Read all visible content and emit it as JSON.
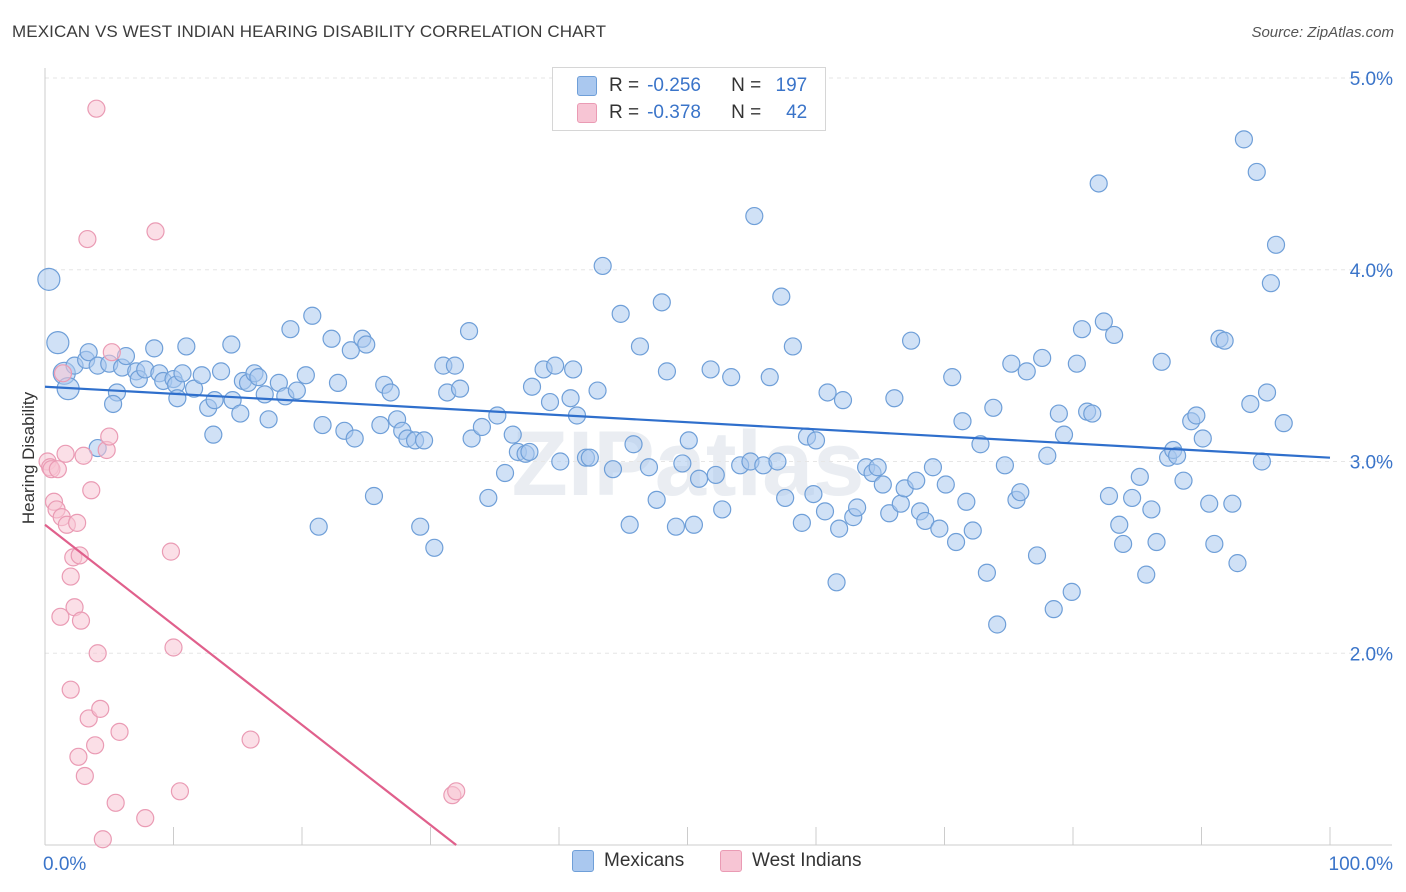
{
  "title": "MEXICAN VS WEST INDIAN HEARING DISABILITY CORRELATION CHART",
  "source": "Source: ZipAtlas.com",
  "watermark": "ZIPatlas",
  "colors": {
    "blue_fill": "#aac8ef",
    "blue_stroke": "#6f9fd8",
    "blue_line": "#2f6fcc",
    "pink_fill": "#f7c5d4",
    "pink_stroke": "#ea9bb4",
    "pink_line": "#e0608c",
    "tick_label": "#3a74c9",
    "grid": "#e6e6e6"
  },
  "legend_top": [
    {
      "r_label": "R =",
      "r_value": "-0.256",
      "n_label": "N =",
      "n_value": "197"
    },
    {
      "r_label": "R =",
      "r_value": "-0.378",
      "n_label": "N =",
      "n_value": "42"
    }
  ],
  "legend_bottom": [
    "Mexicans",
    "West Indians"
  ],
  "chart_data": {
    "type": "scatter",
    "title": "MEXICAN VS WEST INDIAN HEARING DISABILITY CORRELATION CHART",
    "xlabel": "",
    "ylabel": "Hearing Disability",
    "xlim": [
      0,
      100
    ],
    "ylim": [
      1.0,
      5.0
    ],
    "x_tick_labels": [
      "0.0%",
      "100.0%"
    ],
    "y_ticks": [
      2.0,
      3.0,
      4.0,
      5.0
    ],
    "y_tick_labels": [
      "2.0%",
      "3.0%",
      "4.0%",
      "5.0%"
    ],
    "grid": true,
    "legend_position": "top-center",
    "series": [
      {
        "name": "Mexicans",
        "r": -0.256,
        "n": 197,
        "trend": {
          "x": [
            0,
            100
          ],
          "y": [
            3.39,
            3.02
          ]
        },
        "points": [
          [
            0.3,
            3.95
          ],
          [
            1.0,
            3.62
          ],
          [
            1.5,
            3.46
          ],
          [
            1.8,
            3.38
          ],
          [
            2.3,
            3.5
          ],
          [
            3.2,
            3.53
          ],
          [
            3.4,
            3.57
          ],
          [
            4.1,
            3.07
          ],
          [
            4.1,
            3.5
          ],
          [
            5.0,
            3.51
          ],
          [
            5.6,
            3.36
          ],
          [
            5.3,
            3.3
          ],
          [
            6.0,
            3.49
          ],
          [
            6.3,
            3.55
          ],
          [
            7.1,
            3.47
          ],
          [
            7.3,
            3.43
          ],
          [
            7.8,
            3.48
          ],
          [
            8.5,
            3.59
          ],
          [
            8.9,
            3.46
          ],
          [
            9.2,
            3.42
          ],
          [
            10.0,
            3.43
          ],
          [
            10.2,
            3.4
          ],
          [
            10.3,
            3.33
          ],
          [
            10.7,
            3.46
          ],
          [
            11.0,
            3.6
          ],
          [
            11.6,
            3.38
          ],
          [
            12.2,
            3.45
          ],
          [
            12.7,
            3.28
          ],
          [
            13.1,
            3.14
          ],
          [
            13.2,
            3.32
          ],
          [
            13.7,
            3.47
          ],
          [
            14.6,
            3.32
          ],
          [
            14.5,
            3.61
          ],
          [
            15.2,
            3.25
          ],
          [
            15.4,
            3.42
          ],
          [
            15.8,
            3.41
          ],
          [
            16.3,
            3.46
          ],
          [
            16.6,
            3.44
          ],
          [
            17.1,
            3.35
          ],
          [
            17.4,
            3.22
          ],
          [
            18.2,
            3.41
          ],
          [
            18.7,
            3.34
          ],
          [
            19.1,
            3.69
          ],
          [
            19.6,
            3.37
          ],
          [
            20.3,
            3.45
          ],
          [
            20.8,
            3.76
          ],
          [
            21.3,
            2.66
          ],
          [
            21.6,
            3.19
          ],
          [
            22.3,
            3.64
          ],
          [
            22.8,
            3.41
          ],
          [
            23.3,
            3.16
          ],
          [
            23.8,
            3.58
          ],
          [
            24.1,
            3.12
          ],
          [
            24.7,
            3.64
          ],
          [
            25.0,
            3.61
          ],
          [
            25.6,
            2.82
          ],
          [
            26.1,
            3.19
          ],
          [
            26.4,
            3.4
          ],
          [
            26.9,
            3.36
          ],
          [
            27.4,
            3.22
          ],
          [
            27.8,
            3.16
          ],
          [
            28.2,
            3.12
          ],
          [
            28.8,
            3.11
          ],
          [
            29.2,
            2.66
          ],
          [
            29.5,
            3.11
          ],
          [
            30.3,
            2.55
          ],
          [
            31.0,
            3.5
          ],
          [
            31.3,
            3.36
          ],
          [
            31.9,
            3.5
          ],
          [
            32.3,
            3.38
          ],
          [
            33.0,
            3.68
          ],
          [
            33.2,
            3.12
          ],
          [
            34.0,
            3.18
          ],
          [
            34.5,
            2.81
          ],
          [
            35.2,
            3.24
          ],
          [
            35.8,
            2.94
          ],
          [
            36.4,
            3.14
          ],
          [
            36.8,
            3.05
          ],
          [
            37.4,
            3.04
          ],
          [
            37.7,
            3.05
          ],
          [
            37.9,
            3.39
          ],
          [
            38.8,
            3.48
          ],
          [
            39.3,
            3.31
          ],
          [
            39.7,
            3.5
          ],
          [
            40.1,
            3.0
          ],
          [
            40.9,
            3.33
          ],
          [
            41.1,
            3.48
          ],
          [
            41.4,
            3.24
          ],
          [
            42.1,
            3.02
          ],
          [
            42.4,
            3.02
          ],
          [
            43.0,
            3.37
          ],
          [
            43.4,
            4.02
          ],
          [
            44.2,
            2.96
          ],
          [
            44.8,
            3.77
          ],
          [
            45.5,
            2.67
          ],
          [
            45.8,
            3.09
          ],
          [
            46.3,
            3.6
          ],
          [
            47.0,
            2.97
          ],
          [
            47.6,
            2.8
          ],
          [
            48.0,
            3.83
          ],
          [
            48.4,
            3.47
          ],
          [
            49.1,
            2.66
          ],
          [
            49.6,
            2.99
          ],
          [
            50.1,
            3.11
          ],
          [
            50.5,
            2.67
          ],
          [
            50.9,
            2.91
          ],
          [
            51.8,
            3.48
          ],
          [
            52.2,
            2.93
          ],
          [
            52.7,
            2.75
          ],
          [
            53.4,
            3.44
          ],
          [
            54.1,
            2.98
          ],
          [
            54.9,
            3.0
          ],
          [
            55.2,
            4.28
          ],
          [
            55.9,
            2.98
          ],
          [
            56.4,
            3.44
          ],
          [
            57.0,
            3.0
          ],
          [
            57.3,
            3.86
          ],
          [
            57.6,
            2.81
          ],
          [
            58.2,
            3.6
          ],
          [
            58.9,
            2.68
          ],
          [
            59.3,
            3.13
          ],
          [
            59.8,
            2.83
          ],
          [
            60.0,
            3.11
          ],
          [
            60.7,
            2.74
          ],
          [
            60.9,
            3.36
          ],
          [
            61.6,
            2.37
          ],
          [
            61.8,
            2.65
          ],
          [
            62.1,
            3.32
          ],
          [
            62.9,
            2.71
          ],
          [
            63.2,
            2.76
          ],
          [
            63.9,
            2.97
          ],
          [
            64.4,
            2.94
          ],
          [
            64.8,
            2.97
          ],
          [
            65.2,
            2.88
          ],
          [
            65.7,
            2.73
          ],
          [
            66.1,
            3.33
          ],
          [
            66.6,
            2.78
          ],
          [
            66.9,
            2.86
          ],
          [
            67.4,
            3.63
          ],
          [
            67.8,
            2.9
          ],
          [
            68.1,
            2.74
          ],
          [
            68.5,
            2.69
          ],
          [
            69.1,
            2.97
          ],
          [
            69.6,
            2.65
          ],
          [
            70.1,
            2.88
          ],
          [
            70.6,
            3.44
          ],
          [
            70.9,
            2.58
          ],
          [
            71.4,
            3.21
          ],
          [
            71.7,
            2.79
          ],
          [
            72.2,
            2.64
          ],
          [
            72.8,
            3.09
          ],
          [
            73.3,
            2.42
          ],
          [
            73.8,
            3.28
          ],
          [
            74.1,
            2.15
          ],
          [
            74.7,
            2.98
          ],
          [
            75.2,
            3.51
          ],
          [
            75.6,
            2.8
          ],
          [
            75.9,
            2.84
          ],
          [
            76.4,
            3.47
          ],
          [
            77.2,
            2.51
          ],
          [
            77.6,
            3.54
          ],
          [
            78.0,
            3.03
          ],
          [
            78.5,
            2.23
          ],
          [
            78.9,
            3.25
          ],
          [
            79.3,
            3.14
          ],
          [
            79.9,
            2.32
          ],
          [
            80.3,
            3.51
          ],
          [
            80.7,
            3.69
          ],
          [
            81.1,
            3.26
          ],
          [
            81.5,
            3.25
          ],
          [
            82.0,
            4.45
          ],
          [
            82.4,
            3.73
          ],
          [
            82.8,
            2.82
          ],
          [
            83.2,
            3.66
          ],
          [
            83.6,
            2.67
          ],
          [
            83.9,
            2.57
          ],
          [
            84.6,
            2.81
          ],
          [
            85.2,
            2.92
          ],
          [
            85.7,
            2.41
          ],
          [
            86.1,
            2.75
          ],
          [
            86.5,
            2.58
          ],
          [
            86.9,
            3.52
          ],
          [
            87.4,
            3.02
          ],
          [
            87.8,
            3.06
          ],
          [
            88.1,
            3.03
          ],
          [
            88.6,
            2.9
          ],
          [
            89.2,
            3.21
          ],
          [
            89.6,
            3.24
          ],
          [
            90.1,
            3.12
          ],
          [
            90.6,
            2.78
          ],
          [
            91.0,
            2.57
          ],
          [
            91.4,
            3.64
          ],
          [
            91.8,
            3.63
          ],
          [
            92.4,
            2.78
          ],
          [
            92.8,
            2.47
          ],
          [
            93.3,
            4.68
          ],
          [
            93.8,
            3.3
          ],
          [
            94.3,
            4.51
          ],
          [
            94.7,
            3.0
          ],
          [
            95.1,
            3.36
          ],
          [
            95.4,
            3.93
          ],
          [
            95.8,
            4.13
          ],
          [
            96.4,
            3.2
          ]
        ]
      },
      {
        "name": "West Indians",
        "r": -0.378,
        "n": 42,
        "trend": {
          "x": [
            0,
            32
          ],
          "y": [
            2.67,
            1.0
          ]
        },
        "points": [
          [
            0.2,
            3.0
          ],
          [
            0.4,
            2.97
          ],
          [
            0.5,
            2.96
          ],
          [
            0.7,
            2.79
          ],
          [
            0.9,
            2.75
          ],
          [
            1.0,
            2.96
          ],
          [
            1.2,
            2.19
          ],
          [
            1.3,
            2.71
          ],
          [
            1.4,
            3.46
          ],
          [
            1.6,
            3.04
          ],
          [
            1.7,
            2.67
          ],
          [
            2.0,
            2.4
          ],
          [
            2.0,
            1.81
          ],
          [
            2.2,
            2.5
          ],
          [
            2.3,
            2.24
          ],
          [
            2.5,
            2.68
          ],
          [
            2.6,
            1.46
          ],
          [
            2.7,
            2.51
          ],
          [
            2.8,
            2.17
          ],
          [
            3.0,
            3.03
          ],
          [
            3.1,
            1.36
          ],
          [
            3.3,
            4.16
          ],
          [
            3.4,
            1.66
          ],
          [
            3.6,
            2.85
          ],
          [
            3.9,
            1.52
          ],
          [
            4.0,
            4.84
          ],
          [
            4.1,
            2.0
          ],
          [
            4.3,
            1.71
          ],
          [
            4.5,
            1.03
          ],
          [
            4.8,
            3.06
          ],
          [
            5.0,
            3.13
          ],
          [
            5.2,
            3.57
          ],
          [
            5.5,
            1.22
          ],
          [
            5.8,
            1.59
          ],
          [
            7.8,
            1.14
          ],
          [
            8.6,
            4.2
          ],
          [
            9.8,
            2.53
          ],
          [
            10.0,
            2.03
          ],
          [
            10.5,
            1.28
          ],
          [
            16.0,
            1.55
          ],
          [
            31.7,
            1.26
          ],
          [
            32.0,
            1.28
          ]
        ]
      }
    ]
  }
}
